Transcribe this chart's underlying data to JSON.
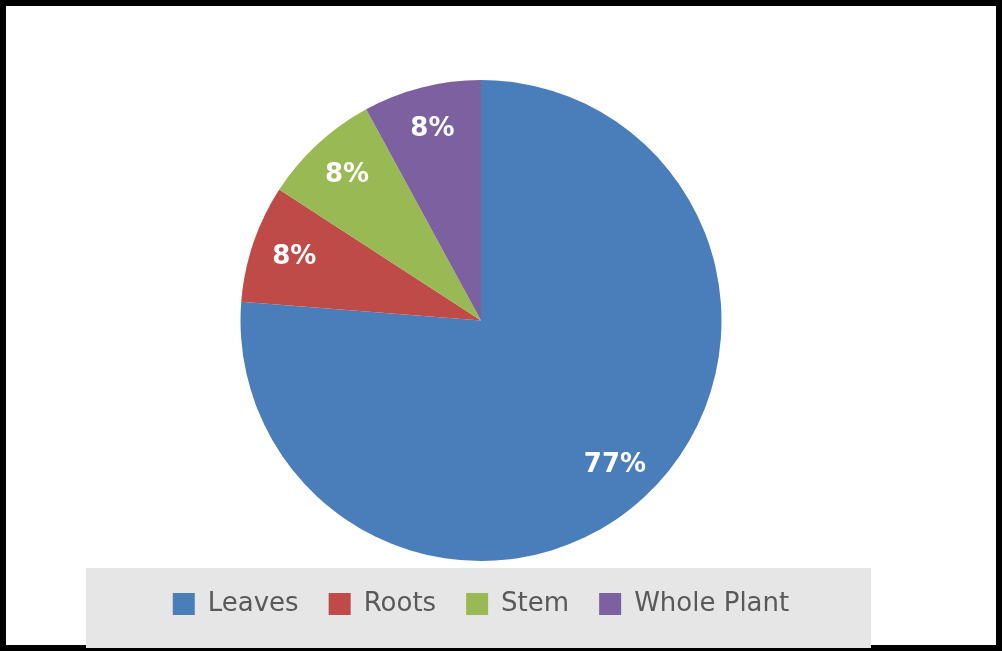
{
  "chart_data": {
    "type": "pie",
    "categories": [
      "Leaves",
      "Roots",
      "Stem",
      "Whole Plant"
    ],
    "values": [
      77,
      8,
      8,
      8
    ],
    "colors": [
      "#4a7ebb",
      "#be4b48",
      "#98b954",
      "#7d60a0"
    ],
    "value_labels": [
      "77%",
      "8%",
      "8%",
      "8%"
    ],
    "legend": "bottom"
  }
}
